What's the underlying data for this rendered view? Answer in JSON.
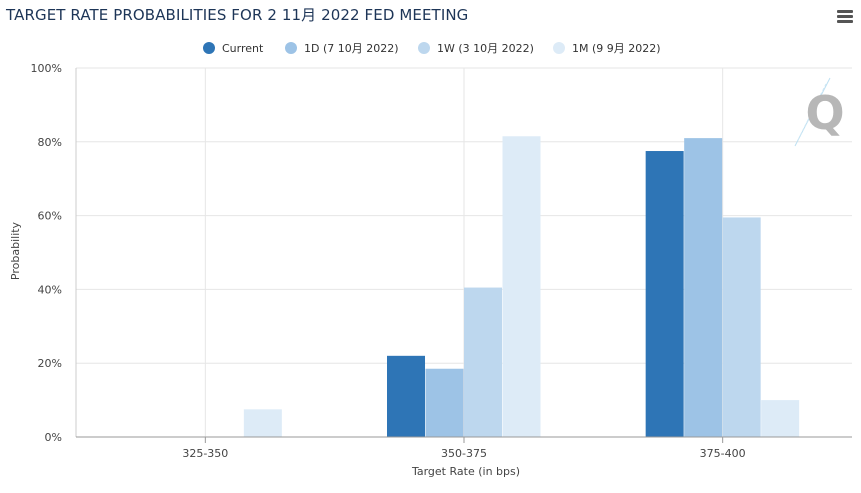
{
  "header": {
    "title": "TARGET RATE PROBABILITIES FOR 2 11月 2022 FED MEETING",
    "menu_icon": "hamburger-menu-icon"
  },
  "watermark": {
    "text": "Q",
    "icon": "quikstrike-logo-icon"
  },
  "chart_data": {
    "type": "bar",
    "title": "TARGET RATE PROBABILITIES FOR 2 11月 2022 FED MEETING",
    "xlabel": "Target Rate (in bps)",
    "ylabel": "Probability",
    "categories": [
      "325-350",
      "350-375",
      "375-400"
    ],
    "ylim": [
      0,
      100
    ],
    "yticks": [
      "0%",
      "20%",
      "40%",
      "60%",
      "80%",
      "100%"
    ],
    "grid": true,
    "legend_position": "top-center",
    "series": [
      {
        "name": "Current",
        "color": "#2e75b6",
        "values": [
          0,
          22,
          77.5
        ]
      },
      {
        "name": "1D (7 10月 2022)",
        "color": "#9dc3e6",
        "values": [
          0,
          18.5,
          81
        ]
      },
      {
        "name": "1W (3 10月 2022)",
        "color": "#bdd7ee",
        "values": [
          0,
          40.5,
          59.5
        ]
      },
      {
        "name": "1M (9 9月 2022)",
        "color": "#ddebf7",
        "values": [
          7.5,
          81.5,
          10
        ]
      }
    ]
  }
}
